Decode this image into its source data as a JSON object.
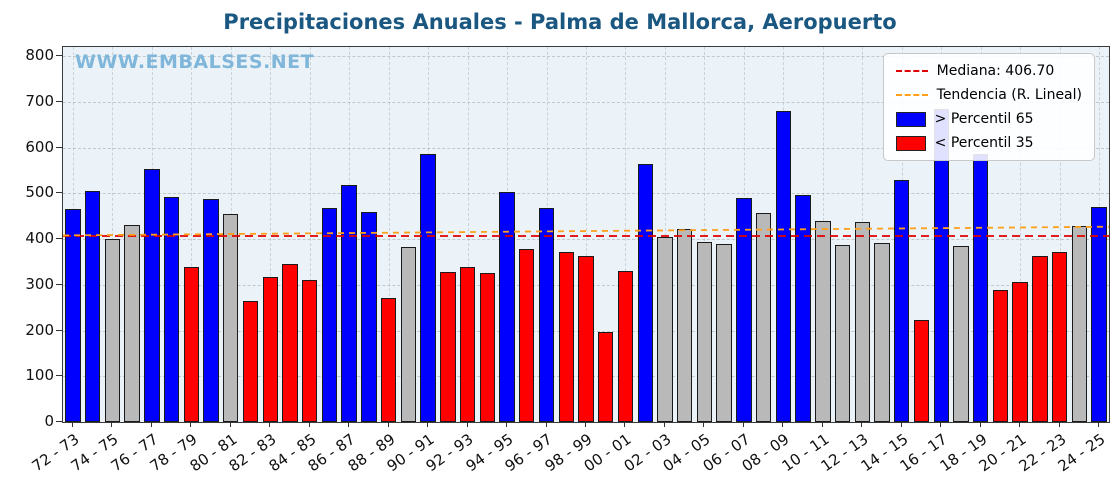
{
  "watermark": "WWW.EMBALSES.NET",
  "legend": {
    "median_label": "Mediana: 406.70",
    "trend_label": "Tendencia (R. Lineal)",
    "above_label": "> Percentil 65",
    "below_label": "< Percentil 35"
  },
  "colors": {
    "above": "#0000ff",
    "below": "#ff0000",
    "mid": "#b9b9b9",
    "median_line": "#e00000",
    "trend_line": "#ff9f1a",
    "title": "#1a5781",
    "watermark": "#7fb6d9",
    "plot_bg": "#ebf3f8"
  },
  "chart_data": {
    "type": "bar",
    "title": "Precipitaciones Anuales - Palma de Mallorca, Aeropuerto",
    "xlabel": "",
    "ylabel": "",
    "ylim": [
      0,
      820
    ],
    "yticks": [
      0,
      100,
      200,
      300,
      400,
      500,
      600,
      700,
      800
    ],
    "grid": true,
    "legend_position": "upper right",
    "x_label_every": 2,
    "median": 406.7,
    "trend_line": {
      "start_value": 408,
      "end_value": 427
    },
    "categories": [
      "72 - 73",
      "73 - 74",
      "74 - 75",
      "75 - 76",
      "76 - 77",
      "77 - 78",
      "78 - 79",
      "79 - 80",
      "80 - 81",
      "81 - 82",
      "82 - 83",
      "83 - 84",
      "84 - 85",
      "85 - 86",
      "86 - 87",
      "87 - 88",
      "88 - 89",
      "89 - 90",
      "90 - 91",
      "91 - 92",
      "92 - 93",
      "93 - 94",
      "94 - 95",
      "95 - 96",
      "96 - 97",
      "97 - 98",
      "98 - 99",
      "99 - 00",
      "00 - 01",
      "01 - 02",
      "02 - 03",
      "03 - 04",
      "04 - 05",
      "05 - 06",
      "06 - 07",
      "07 - 08",
      "08 - 09",
      "09 - 10",
      "10 - 11",
      "11 - 12",
      "12 - 13",
      "13 - 14",
      "14 - 15",
      "15 - 16",
      "16 - 17",
      "17 - 18",
      "18 - 19",
      "19 - 20",
      "20 - 21",
      "21 - 22",
      "22 - 23",
      "23 - 24",
      "24 - 25"
    ],
    "values": [
      465,
      505,
      400,
      430,
      553,
      492,
      340,
      488,
      455,
      265,
      318,
      345,
      310,
      467,
      518,
      460,
      272,
      383,
      585,
      328,
      338,
      325,
      502,
      378,
      467,
      372,
      362,
      197,
      330,
      565,
      405,
      422,
      393,
      390,
      490,
      458,
      680,
      497,
      440,
      387,
      437,
      391,
      530,
      222,
      685,
      385,
      585,
      288,
      307,
      362,
      372,
      428,
      470
    ],
    "percentile_class": [
      "above",
      "above",
      "mid",
      "mid",
      "above",
      "above",
      "below",
      "above",
      "mid",
      "below",
      "below",
      "below",
      "below",
      "above",
      "above",
      "above",
      "below",
      "mid",
      "above",
      "below",
      "below",
      "below",
      "above",
      "below",
      "above",
      "below",
      "below",
      "below",
      "below",
      "above",
      "mid",
      "mid",
      "mid",
      "mid",
      "above",
      "mid",
      "above",
      "above",
      "mid",
      "mid",
      "mid",
      "mid",
      "above",
      "below",
      "above",
      "mid",
      "above",
      "below",
      "below",
      "below",
      "below",
      "mid",
      "above"
    ]
  }
}
